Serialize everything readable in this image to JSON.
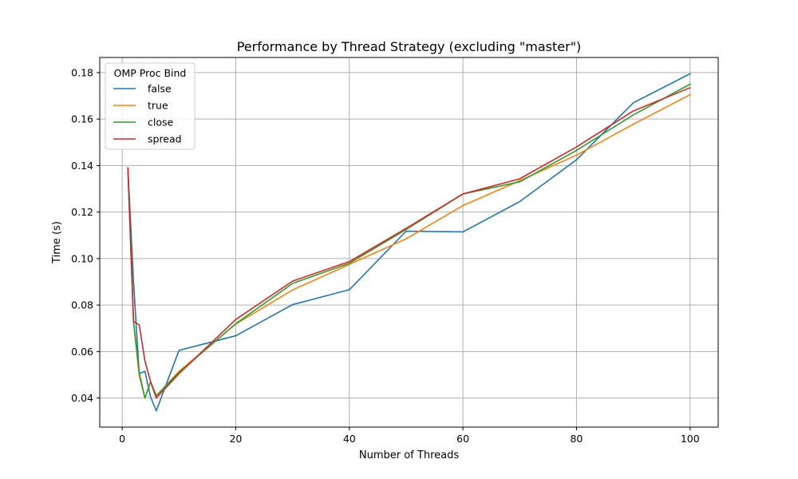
{
  "chart_data": {
    "type": "line",
    "title": "Performance by Thread Strategy (excluding \"master\")",
    "xlabel": "Number of Threads",
    "ylabel": "Time (s)",
    "xlim": [
      -3.95,
      104.95
    ],
    "ylim": [
      0.0275,
      0.1865
    ],
    "xticks": [
      0,
      20,
      40,
      60,
      80,
      100
    ],
    "yticks": [
      0.04,
      0.06,
      0.08,
      0.1,
      0.12,
      0.14,
      0.16,
      0.18
    ],
    "xtick_labels": [
      "0",
      "20",
      "40",
      "60",
      "80",
      "100"
    ],
    "ytick_labels": [
      "0.04",
      "0.06",
      "0.08",
      "0.10",
      "0.12",
      "0.14",
      "0.16",
      "0.18"
    ],
    "grid": true,
    "legend": {
      "title": "OMP Proc Bind",
      "location": "upper left"
    },
    "x": [
      1,
      2,
      3,
      4,
      5,
      6,
      10,
      20,
      30,
      40,
      50,
      60,
      70,
      80,
      90,
      100
    ],
    "series": [
      {
        "name": "false",
        "color": "#1f77b4",
        "values": [
          0.139,
          0.09,
          0.0505,
          0.0515,
          0.0405,
          0.0345,
          0.0605,
          0.0668,
          0.0802,
          0.0866,
          0.1118,
          0.1115,
          0.1245,
          0.1425,
          0.167,
          0.1795
        ]
      },
      {
        "name": "true",
        "color": "#ff7f0e",
        "values": [
          0.139,
          0.0725,
          0.0495,
          0.04,
          0.047,
          0.041,
          0.0515,
          0.0718,
          0.0865,
          0.0975,
          0.1085,
          0.1228,
          0.1335,
          0.1445,
          0.1578,
          0.1705
        ]
      },
      {
        "name": "close",
        "color": "#2ca02c",
        "values": [
          0.139,
          0.073,
          0.051,
          0.04,
          0.047,
          0.041,
          0.051,
          0.072,
          0.0893,
          0.098,
          0.1125,
          0.1278,
          0.133,
          0.1465,
          0.1618,
          0.175
        ]
      },
      {
        "name": "spread",
        "color": "#d62728",
        "values": [
          0.139,
          0.073,
          0.0715,
          0.056,
          0.047,
          0.04,
          0.0505,
          0.0738,
          0.0903,
          0.0987,
          0.113,
          0.1278,
          0.1343,
          0.148,
          0.1635,
          0.1735
        ]
      }
    ]
  }
}
